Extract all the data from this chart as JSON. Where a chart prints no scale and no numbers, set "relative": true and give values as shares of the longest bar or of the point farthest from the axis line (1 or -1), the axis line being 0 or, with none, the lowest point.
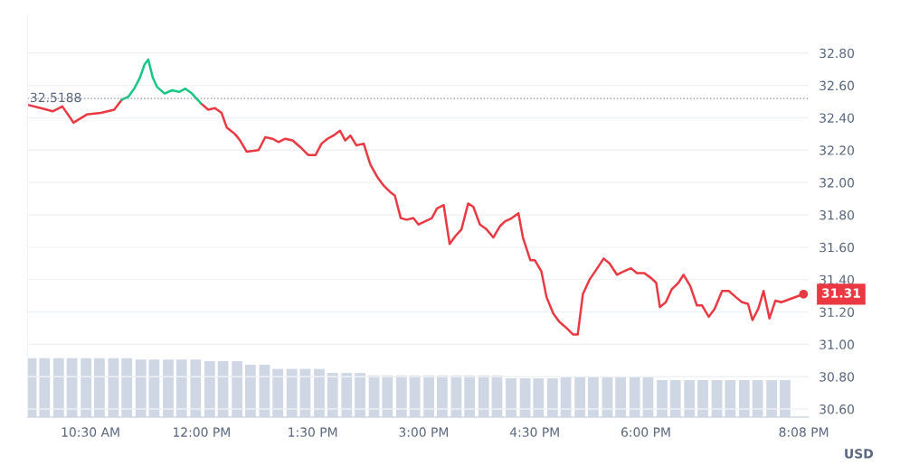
{
  "chart_data": [
    {
      "type": "line",
      "x": [
        9.65,
        9.83,
        9.99,
        10.12,
        10.27,
        10.45,
        10.64,
        10.82,
        10.92,
        11.01,
        11.09,
        11.17,
        11.23,
        11.28,
        11.34,
        11.4,
        11.5,
        11.6,
        11.7,
        11.78,
        11.87,
        11.99,
        12.09,
        12.18,
        12.27,
        12.34,
        12.45,
        12.52,
        12.61,
        12.77,
        12.86,
        12.96,
        13.04,
        13.13,
        13.23,
        13.33,
        13.44,
        13.54,
        13.62,
        13.7,
        13.78,
        13.87,
        13.94,
        14.01,
        14.09,
        14.19,
        14.28,
        14.38,
        14.46,
        14.55,
        14.61,
        14.69,
        14.77,
        14.86,
        14.93,
        15.02,
        15.11,
        15.18,
        15.27,
        15.35,
        15.43,
        15.51,
        15.6,
        15.67,
        15.76,
        15.85,
        15.94,
        16.03,
        16.1,
        16.19,
        16.28,
        16.34,
        16.44,
        16.5,
        16.59,
        16.66,
        16.75,
        16.83,
        16.93,
        17.02,
        17.08,
        17.15,
        17.24,
        17.33,
        17.43,
        17.51,
        17.61,
        17.7,
        17.8,
        17.88,
        17.98,
        18.07,
        18.14,
        18.19,
        18.27,
        18.35,
        18.44,
        18.51,
        18.6,
        18.69,
        18.76,
        18.85,
        18.93,
        19.03,
        19.12,
        19.22,
        19.3,
        19.38,
        19.44,
        19.52,
        19.59,
        19.67,
        19.75,
        19.83,
        20.13
      ],
      "series": [
        {
          "color": "#ea3943",
          "values": [
            32.48,
            32.46,
            32.44,
            32.47,
            32.37,
            32.42,
            32.43,
            32.45,
            32.51,
            null,
            null,
            null,
            null,
            null,
            null,
            null,
            null,
            null,
            null,
            null,
            null,
            32.49,
            32.45,
            32.46,
            32.43,
            32.34,
            32.3,
            32.26,
            32.19,
            32.2,
            32.28,
            32.27,
            32.25,
            32.27,
            32.26,
            32.22,
            32.17,
            32.17,
            32.24,
            32.27,
            32.29,
            32.32,
            32.26,
            32.29,
            32.23,
            32.24,
            32.11,
            32.03,
            31.98,
            31.94,
            31.92,
            31.78,
            31.77,
            31.78,
            31.74,
            31.76,
            31.78,
            31.84,
            31.86,
            31.62,
            31.67,
            31.71,
            31.87,
            31.85,
            31.74,
            31.71,
            31.66,
            31.73,
            31.76,
            31.78,
            31.81,
            31.66,
            31.52,
            31.52,
            31.45,
            31.29,
            31.19,
            31.14,
            31.1,
            31.06,
            31.06,
            31.31,
            31.4,
            31.46,
            31.53,
            31.5,
            31.43,
            31.45,
            31.47,
            31.44,
            31.44,
            31.41,
            31.38,
            31.23,
            31.26,
            31.34,
            31.38,
            31.43,
            31.36,
            31.24,
            31.24,
            31.17,
            31.22,
            31.33,
            31.33,
            31.29,
            31.26,
            31.25,
            31.15,
            31.22,
            31.33,
            31.16,
            31.27,
            31.26,
            31.31
          ]
        },
        {
          "color": "#16c784",
          "values": [
            null,
            null,
            null,
            null,
            null,
            null,
            null,
            null,
            32.51,
            32.53,
            32.58,
            32.65,
            32.73,
            32.76,
            32.65,
            32.59,
            32.55,
            32.57,
            32.56,
            32.58,
            32.55,
            32.49,
            null,
            null,
            null,
            null,
            null,
            null,
            null,
            null,
            null,
            null,
            null,
            null,
            null,
            null,
            null,
            null,
            null,
            null,
            null,
            null,
            null,
            null,
            null,
            null,
            null,
            null,
            null,
            null,
            null,
            null,
            null,
            null,
            null,
            null,
            null,
            null,
            null,
            null,
            null,
            null,
            null,
            null,
            null,
            null,
            null,
            null,
            null,
            null,
            null,
            null,
            null,
            null,
            null,
            null,
            null,
            null,
            null,
            null,
            null,
            null,
            null,
            null,
            null,
            null,
            null,
            null,
            null,
            null,
            null,
            null,
            null,
            null,
            null,
            null,
            null,
            null,
            null,
            null,
            null,
            null,
            null,
            null,
            null,
            null,
            null,
            null,
            null,
            null,
            null,
            null,
            null,
            null,
            null
          ]
        }
      ],
      "xlim": [
        9.65,
        20.2
      ],
      "xticks": [
        {
          "value": 10.5,
          "label": "10:30 AM"
        },
        {
          "value": 12,
          "label": "12:00 PM"
        },
        {
          "value": 13.5,
          "label": "1:30 PM"
        },
        {
          "value": 15,
          "label": "3:00 PM"
        },
        {
          "value": 16.5,
          "label": "4:30 PM"
        },
        {
          "value": 18,
          "label": "6:00 PM"
        },
        {
          "value": 20.133,
          "label": "8:08 PM"
        }
      ],
      "ylim": [
        30.55,
        33.04
      ],
      "yticks": [
        {
          "value": 30.6,
          "label": "30.60"
        },
        {
          "value": 30.8,
          "label": "30.80"
        },
        {
          "value": 31.0,
          "label": "31.00"
        },
        {
          "value": 31.2,
          "label": "31.20"
        },
        {
          "value": 31.4,
          "label": "31.40"
        },
        {
          "value": 31.6,
          "label": "31.60"
        },
        {
          "value": 31.8,
          "label": "31.80"
        },
        {
          "value": 32.0,
          "label": "32.00"
        },
        {
          "value": 32.2,
          "label": "32.20"
        },
        {
          "value": 32.4,
          "label": "32.40"
        },
        {
          "value": 32.6,
          "label": "32.60"
        },
        {
          "value": 32.8,
          "label": "32.80"
        }
      ],
      "ylabel": "USD",
      "grid": "y",
      "ref_lines": [
        {
          "axis": "y",
          "value": 32.5188,
          "label": "32.5188",
          "line_style": "dotted",
          "color": "#808a9d"
        }
      ],
      "annotations": [
        {
          "text": "31.31",
          "x": 20.13,
          "y": 31.31
        }
      ],
      "line_style": "solid",
      "marker": "none"
    },
    {
      "type": "bar",
      "relative": true,
      "color": "#cfd6e4",
      "xlim": [
        9.65,
        20.2
      ],
      "x": [
        9.7,
        9.88,
        10.07,
        10.25,
        10.44,
        10.62,
        10.81,
        10.99,
        11.18,
        11.36,
        11.55,
        11.73,
        11.92,
        12.11,
        12.29,
        12.48,
        12.66,
        12.85,
        13.03,
        13.22,
        13.4,
        13.59,
        13.77,
        13.96,
        14.14,
        14.33,
        14.51,
        14.7,
        14.88,
        15.07,
        15.25,
        15.44,
        15.62,
        15.81,
        15.99,
        16.18,
        16.37,
        16.55,
        16.74,
        16.92,
        17.11,
        17.29,
        17.48,
        17.66,
        17.85,
        18.03,
        18.22,
        18.4,
        18.59,
        18.77,
        18.96,
        19.14,
        19.33,
        19.51,
        19.7,
        19.88
      ],
      "values": [
        1,
        1,
        1,
        1,
        1,
        1,
        1,
        1,
        0.98,
        0.98,
        0.98,
        0.98,
        0.98,
        0.95,
        0.95,
        0.95,
        0.89,
        0.89,
        0.82,
        0.82,
        0.82,
        0.82,
        0.75,
        0.75,
        0.75,
        0.71,
        0.71,
        0.71,
        0.71,
        0.71,
        0.71,
        0.71,
        0.71,
        0.71,
        0.71,
        0.66,
        0.66,
        0.66,
        0.66,
        0.68,
        0.68,
        0.68,
        0.68,
        0.68,
        0.68,
        0.68,
        0.63,
        0.63,
        0.63,
        0.63,
        0.63,
        0.63,
        0.63,
        0.63,
        0.63,
        0.63
      ]
    }
  ]
}
